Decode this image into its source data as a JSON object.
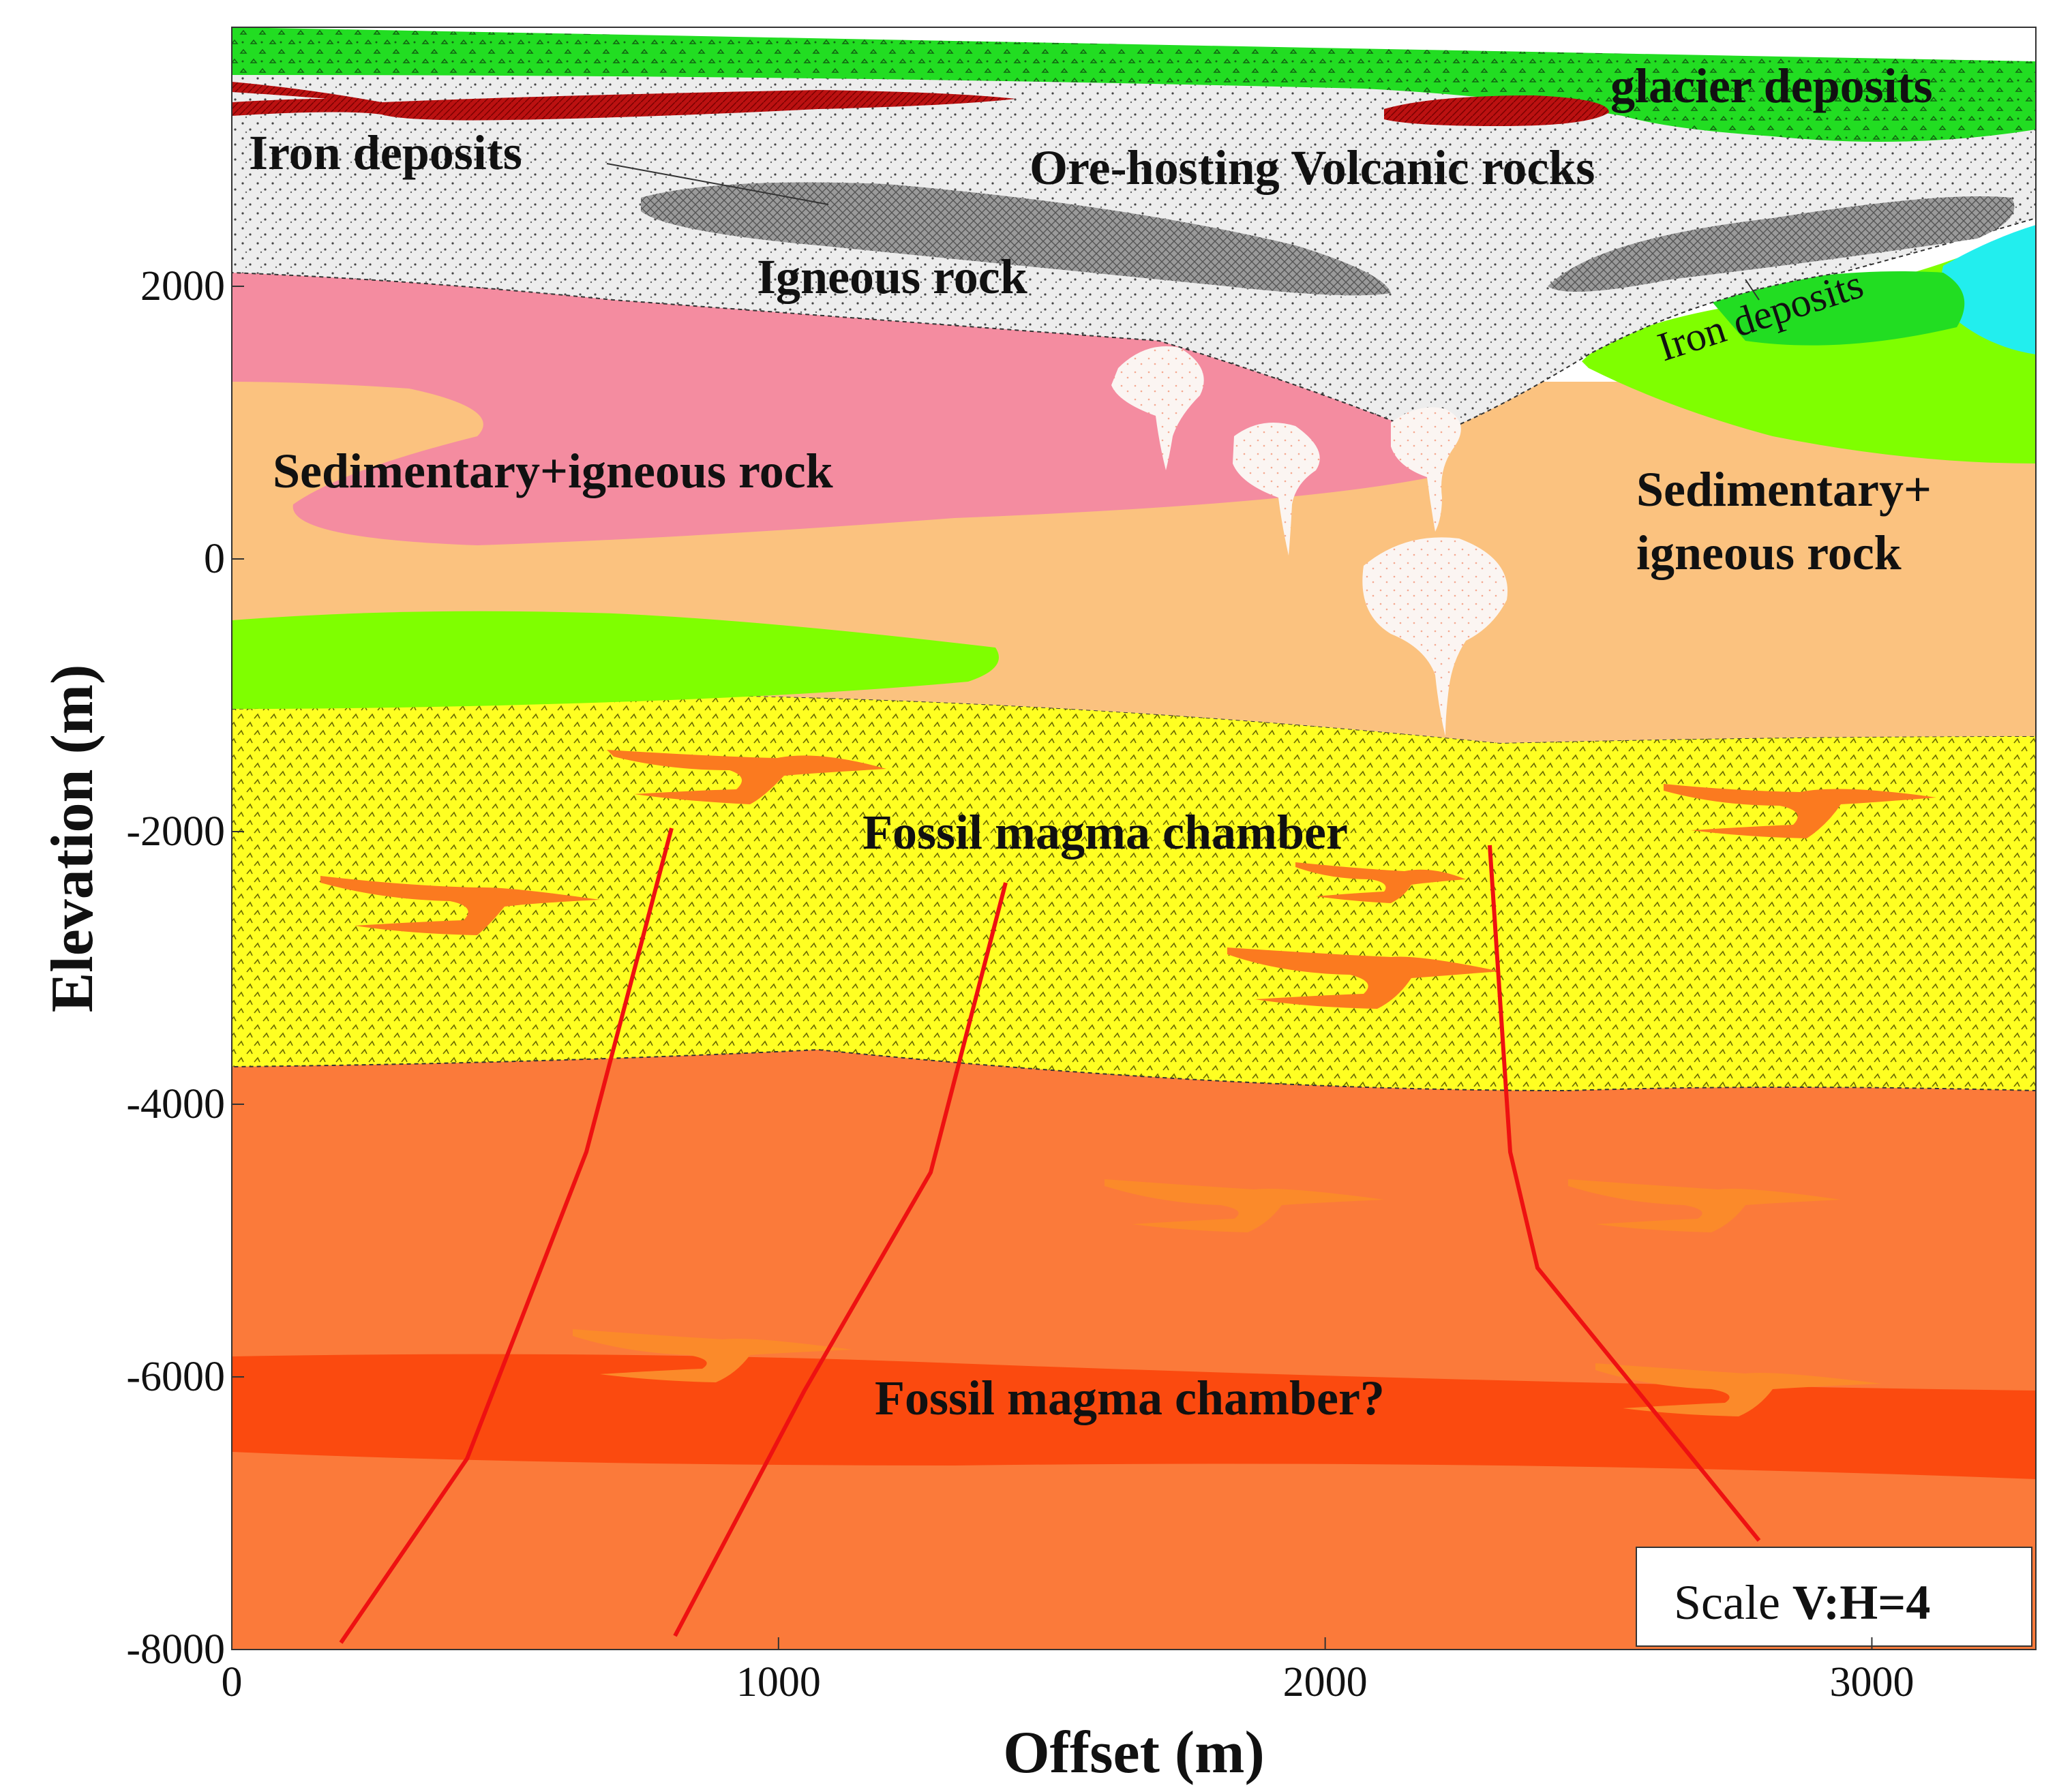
{
  "figure": {
    "xlabel": "Offset  (m)",
    "ylabel": "Elevation (m)",
    "x_ticks": [
      "0",
      "1000",
      "2000",
      "3000"
    ],
    "y_ticks": [
      "2000",
      "0",
      "-2000",
      "-4000",
      "-6000",
      "-8000"
    ],
    "x_range": [
      0,
      3300
    ],
    "y_range": [
      -8000,
      3900
    ],
    "scale_prefix": "Scale ",
    "scale_value": "V:H=4"
  },
  "labels": {
    "glacier": "glacier deposits",
    "iron_left": "Iron deposits",
    "ore_volcanic": "Ore-hosting Volcanic rocks",
    "igneous": "Igneous rock",
    "iron_right": "Iron deposits",
    "sed_left": "Sedimentary+igneous rock",
    "sed_right_1": "Sedimentary+",
    "sed_right_2": "igneous rock",
    "fossil_chamber": "Fossil magma chamber",
    "fossil_chamber_q": "Fossil magma chamber?"
  },
  "colors": {
    "glacier": "#22dd22",
    "volcanic": "#ededed",
    "igneous_lens": "#9a9a9a",
    "pink": "#f48ca0",
    "orange_sed": "#fbc27f",
    "green": "#7fff00",
    "yellow": "#ffff22",
    "deep_orange": "#fb7a3a",
    "magma_band": "#fb4a0f",
    "sill": "#fb7a1f",
    "fault": "#ee1111",
    "iron": "#bb1111",
    "cyan": "#22eeee"
  }
}
